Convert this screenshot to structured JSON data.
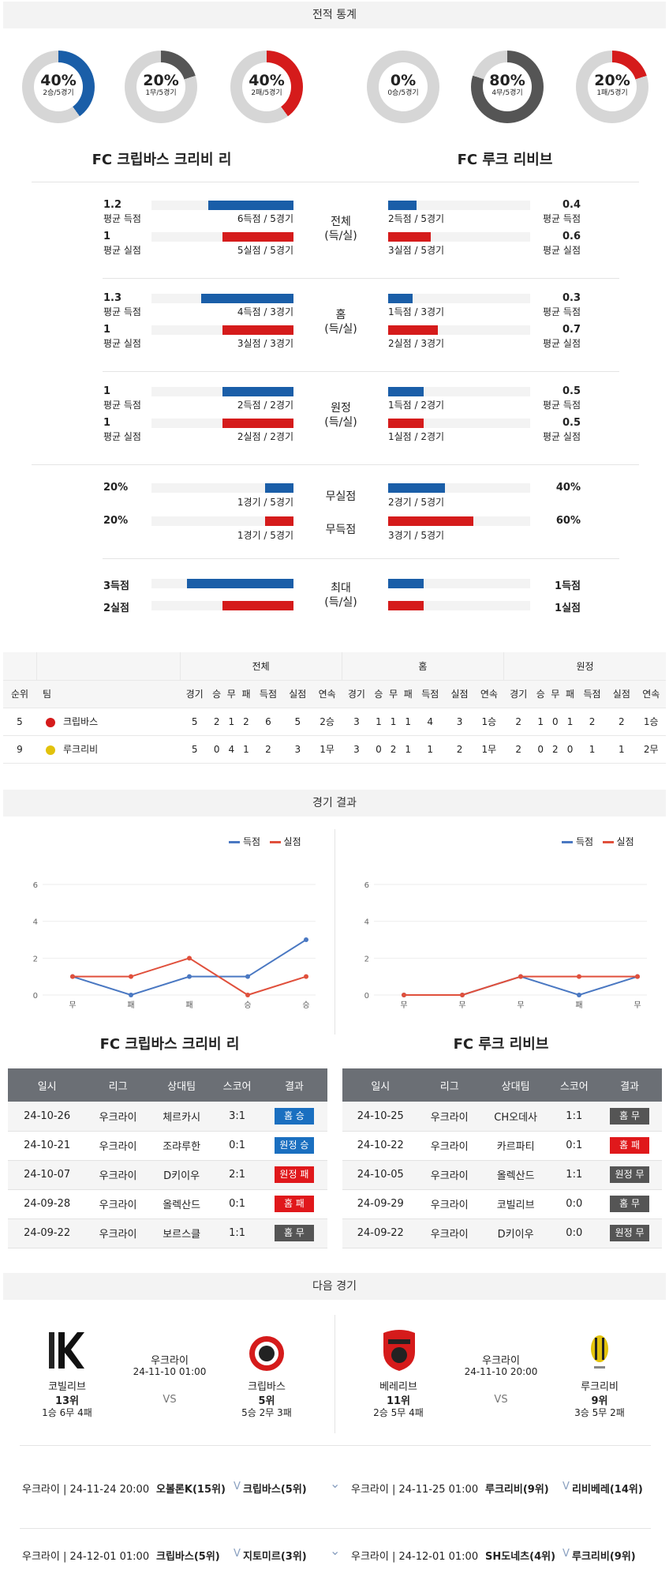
{
  "stats_title": "전적 통계",
  "donuts_left": [
    {
      "pct": "40%",
      "sub": "2승/5경기",
      "value": 0.4,
      "color": "#1a5ea8"
    },
    {
      "pct": "20%",
      "sub": "1무/5경기",
      "value": 0.2,
      "color": "#555555"
    },
    {
      "pct": "40%",
      "sub": "2패/5경기",
      "value": 0.4,
      "color": "#d51b1b"
    }
  ],
  "donuts_right": [
    {
      "pct": "0%",
      "sub": "0승/5경기",
      "value": 0.0,
      "color": "#1a5ea8"
    },
    {
      "pct": "80%",
      "sub": "4무/5경기",
      "value": 0.8,
      "color": "#555555"
    },
    {
      "pct": "20%",
      "sub": "1패/5경기",
      "value": 0.2,
      "color": "#d51b1b"
    }
  ],
  "team_left": "FC 크립바스 크리비 리",
  "team_right": "FC 루크 리비브",
  "rows": [
    {
      "label": [
        "전체",
        "(득/실)"
      ],
      "left": [
        {
          "val": "1.2",
          "cap": "평균 득점",
          "frac": "6득점 / 5경기",
          "ratio": 0.6
        },
        {
          "val": "1",
          "cap": "평균 실점",
          "frac": "5실점 / 5경기",
          "ratio": 0.5
        }
      ],
      "right": [
        {
          "val": "0.4",
          "cap": "평균 득점",
          "frac": "2득점 / 5경기",
          "ratio": 0.2
        },
        {
          "val": "0.6",
          "cap": "평균 실점",
          "frac": "3실점 / 5경기",
          "ratio": 0.3
        }
      ]
    },
    {
      "label": [
        "홈",
        "(득/실)"
      ],
      "left": [
        {
          "val": "1.3",
          "cap": "평균 득점",
          "frac": "4득점 / 3경기",
          "ratio": 0.65
        },
        {
          "val": "1",
          "cap": "평균 실점",
          "frac": "3실점 / 3경기",
          "ratio": 0.5
        }
      ],
      "right": [
        {
          "val": "0.3",
          "cap": "평균 득점",
          "frac": "1득점 / 3경기",
          "ratio": 0.17
        },
        {
          "val": "0.7",
          "cap": "평균 실점",
          "frac": "2실점 / 3경기",
          "ratio": 0.35
        }
      ]
    },
    {
      "label": [
        "원정",
        "(득/실)"
      ],
      "left": [
        {
          "val": "1",
          "cap": "평균 득점",
          "frac": "2득점 / 2경기",
          "ratio": 0.5
        },
        {
          "val": "1",
          "cap": "평균 실점",
          "frac": "2실점 / 2경기",
          "ratio": 0.5
        }
      ],
      "right": [
        {
          "val": "0.5",
          "cap": "평균 득점",
          "frac": "1득점 / 2경기",
          "ratio": 0.25
        },
        {
          "val": "0.5",
          "cap": "평균 실점",
          "frac": "1실점 / 2경기",
          "ratio": 0.25
        }
      ]
    }
  ],
  "pct_rows": [
    {
      "label": "무실점",
      "left": {
        "val": "20%",
        "frac": "1경기 / 5경기",
        "ratio": 0.2
      },
      "right": {
        "val": "40%",
        "frac": "2경기 / 5경기",
        "ratio": 0.4
      }
    },
    {
      "label": "무득점",
      "left": {
        "val": "20%",
        "frac": "1경기 / 5경기",
        "ratio": 0.2
      },
      "right": {
        "val": "60%",
        "frac": "3경기 / 5경기",
        "ratio": 0.6
      }
    }
  ],
  "max_row": {
    "label": [
      "최대",
      "(득/실)"
    ],
    "left": [
      {
        "val": "3득점",
        "ratio": 0.75
      },
      {
        "val": "2실점",
        "ratio": 0.5
      }
    ],
    "right": [
      {
        "val": "1득점",
        "ratio": 0.25
      },
      {
        "val": "1실점",
        "ratio": 0.25
      }
    ]
  },
  "standings": {
    "groups": [
      "전체",
      "홈",
      "원정"
    ],
    "col_rank": "순위",
    "col_team": "팀",
    "cols": [
      "경기",
      "승",
      "무",
      "패",
      "득점",
      "실점",
      "연속"
    ],
    "rows": [
      {
        "rank": "5",
        "team": "크립바스",
        "all": [
          "5",
          "2",
          "1",
          "2",
          "6",
          "5",
          "2승"
        ],
        "home": [
          "3",
          "1",
          "1",
          "1",
          "4",
          "3",
          "1승"
        ],
        "away": [
          "2",
          "1",
          "0",
          "1",
          "2",
          "2",
          "1승"
        ]
      },
      {
        "rank": "9",
        "team": "루크리비",
        "all": [
          "5",
          "0",
          "4",
          "1",
          "2",
          "3",
          "1무"
        ],
        "home": [
          "3",
          "0",
          "2",
          "1",
          "1",
          "2",
          "1무"
        ],
        "away": [
          "2",
          "0",
          "2",
          "0",
          "1",
          "1",
          "2무"
        ]
      }
    ]
  },
  "results_title": "경기 결과",
  "legend": {
    "scored": "득점",
    "conceded": "실점"
  },
  "chart_data": [
    {
      "type": "line",
      "categories": [
        "무",
        "패",
        "패",
        "승",
        "승"
      ],
      "ylim": [
        0,
        6
      ],
      "yticks": [
        "0",
        "2",
        "4",
        "6"
      ],
      "series": [
        {
          "name": "득점",
          "values": [
            1,
            0,
            1,
            1,
            3
          ],
          "color": "#4a78c2"
        },
        {
          "name": "실점",
          "values": [
            1,
            1,
            2,
            0,
            1
          ],
          "color": "#e0503c"
        }
      ]
    },
    {
      "type": "line",
      "categories": [
        "무",
        "무",
        "무",
        "패",
        "무"
      ],
      "ylim": [
        0,
        6
      ],
      "yticks": [
        "0",
        "2",
        "4",
        "6"
      ],
      "series": [
        {
          "name": "득점",
          "values": [
            0,
            0,
            1,
            0,
            1
          ],
          "color": "#4a78c2"
        },
        {
          "name": "실점",
          "values": [
            0,
            0,
            1,
            1,
            1
          ],
          "color": "#e0503c"
        }
      ]
    }
  ],
  "results_headers": [
    "일시",
    "리그",
    "상대팀",
    "스코어",
    "결과"
  ],
  "results_left": [
    {
      "date": "24-10-26",
      "league": "우크라이",
      "opp": "체르카시",
      "score": "3:1",
      "result": "홈 승",
      "color": "blue"
    },
    {
      "date": "24-10-21",
      "league": "우크라이",
      "opp": "조랴루한",
      "score": "0:1",
      "result": "원정 승",
      "color": "blue"
    },
    {
      "date": "24-10-07",
      "league": "우크라이",
      "opp": "D키이우",
      "score": "2:1",
      "result": "원정 패",
      "color": "red"
    },
    {
      "date": "24-09-28",
      "league": "우크라이",
      "opp": "올렉산드",
      "score": "0:1",
      "result": "홈 패",
      "color": "red"
    },
    {
      "date": "24-09-22",
      "league": "우크라이",
      "opp": "보르스클",
      "score": "1:1",
      "result": "홈 무",
      "color": "gray"
    }
  ],
  "results_right": [
    {
      "date": "24-10-25",
      "league": "우크라이",
      "opp": "CH오데사",
      "score": "1:1",
      "result": "홈 무",
      "color": "gray"
    },
    {
      "date": "24-10-22",
      "league": "우크라이",
      "opp": "카르파티",
      "score": "0:1",
      "result": "홈 패",
      "color": "red"
    },
    {
      "date": "24-10-05",
      "league": "우크라이",
      "opp": "올렉산드",
      "score": "1:1",
      "result": "원정 무",
      "color": "gray"
    },
    {
      "date": "24-09-29",
      "league": "우크라이",
      "opp": "코빌리브",
      "score": "0:0",
      "result": "홈 무",
      "color": "gray"
    },
    {
      "date": "24-09-22",
      "league": "우크라이",
      "opp": "D키이우",
      "score": "0:0",
      "result": "원정 무",
      "color": "gray"
    }
  ],
  "next_title": "다음 경기",
  "next_left": {
    "league": "우크라이",
    "datetime": "24-11-10 01:00",
    "vs": "VS",
    "home": {
      "name": "코빌리브",
      "rank": "13위",
      "record": "1승 6무 4패"
    },
    "away": {
      "name": "크립바스",
      "rank": "5위",
      "record": "5승 2무 3패"
    }
  },
  "next_right": {
    "league": "우크라이",
    "datetime": "24-11-10 20:00",
    "vs": "VS",
    "home": {
      "name": "베레리브",
      "rank": "11위",
      "record": "2승 5무 4패"
    },
    "away": {
      "name": "루크리비",
      "rank": "9위",
      "record": "3승 5무 2패"
    }
  },
  "upcoming": [
    {
      "left": "우크라이 | 24-11-24 20:00",
      "t1": "오볼론K(15위)",
      "t2": "크립바스(5위)"
    },
    {
      "left": "우크라이 | 24-11-25 01:00",
      "t1": "루크리비(9위)",
      "t2": "리비베레(14위)"
    },
    {
      "left": "우크라이 | 24-12-01 01:00",
      "t1": "크립바스(5위)",
      "t2": "지토미르(3위)"
    },
    {
      "left": "우크라이 | 24-12-01 01:00",
      "t1": "SH도네츠(4위)",
      "t2": "루크리비(9위)"
    }
  ]
}
